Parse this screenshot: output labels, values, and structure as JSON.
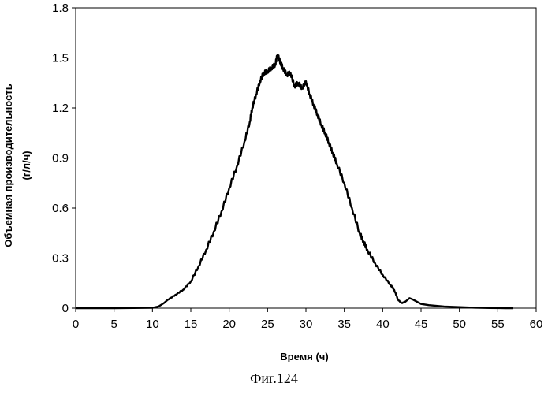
{
  "caption": "Фиг.124",
  "chart_data": {
    "type": "line",
    "xlabel": "Время (ч)",
    "ylabel_line1": "Объемная производительность",
    "ylabel_line2": "(г/л/ч)",
    "xlim": [
      0,
      60
    ],
    "ylim": [
      0,
      1.8
    ],
    "x_ticks": [
      "0",
      "5",
      "10",
      "15",
      "20",
      "25",
      "30",
      "35",
      "40",
      "45",
      "50",
      "55",
      "60"
    ],
    "y_ticks": [
      "0",
      "0.3",
      "0.6",
      "0.9",
      "1.2",
      "1.5",
      "1.8"
    ],
    "grid": false,
    "line_color": "#000000",
    "series": [
      {
        "x": [
          0,
          5,
          10,
          10.8,
          11.5,
          12,
          13,
          14,
          15,
          16,
          17,
          18,
          19,
          20,
          21,
          22,
          22.7,
          23,
          23.5,
          24,
          24.5,
          25,
          25.5,
          26,
          26.3,
          26.7,
          27,
          27.5,
          28,
          28.5,
          29,
          29.5,
          30,
          30.5,
          31,
          31.5,
          32,
          32.5,
          33,
          33.5,
          34,
          35,
          36,
          37,
          37.5,
          38,
          39,
          40,
          41,
          41.5,
          42,
          42.5,
          43,
          43.5,
          44,
          45,
          46,
          48,
          50,
          52,
          54,
          56,
          57
        ],
        "y": [
          0,
          0,
          0.002,
          0.01,
          0.03,
          0.05,
          0.08,
          0.11,
          0.16,
          0.25,
          0.35,
          0.46,
          0.58,
          0.72,
          0.85,
          1.0,
          1.12,
          1.2,
          1.28,
          1.36,
          1.41,
          1.42,
          1.44,
          1.46,
          1.52,
          1.47,
          1.44,
          1.4,
          1.41,
          1.33,
          1.35,
          1.32,
          1.36,
          1.28,
          1.22,
          1.16,
          1.1,
          1.05,
          0.99,
          0.93,
          0.87,
          0.75,
          0.6,
          0.45,
          0.4,
          0.35,
          0.27,
          0.2,
          0.14,
          0.11,
          0.05,
          0.03,
          0.04,
          0.06,
          0.05,
          0.025,
          0.018,
          0.01,
          0.006,
          0.003,
          0.001,
          0,
          0
        ]
      }
    ]
  }
}
